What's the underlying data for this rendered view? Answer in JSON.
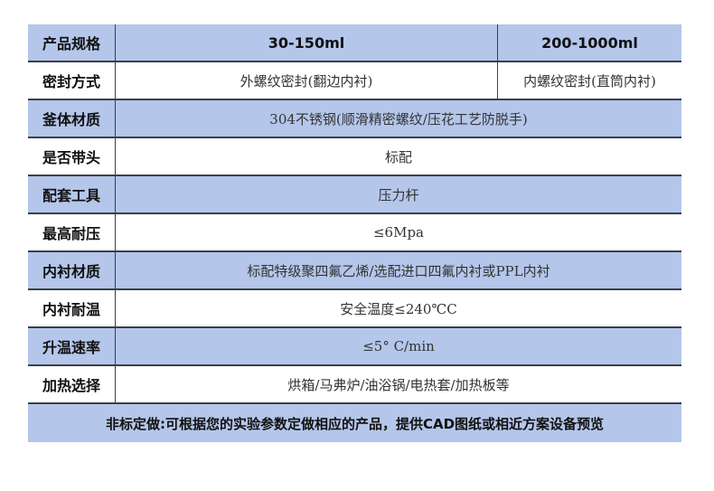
{
  "header": {
    "label": "产品规格",
    "col1": "30-150ml",
    "col2": "200-1000ml"
  },
  "rows": [
    {
      "label": "密封方式",
      "col1": "外螺纹密封(翻边内衬)",
      "col2": "内螺纹密封(直筒内衬)",
      "style": "white"
    },
    {
      "label": "釜体材质",
      "value": "304不锈钢(顺滑精密螺纹/压花工艺防脱手)",
      "style": "blue"
    },
    {
      "label": "是否带头",
      "value": "标配",
      "style": "white"
    },
    {
      "label": "配套工具",
      "value": "压力杆",
      "style": "blue"
    },
    {
      "label": "最高耐压",
      "value": "≤6Mpa",
      "style": "white"
    },
    {
      "label": "内衬材质",
      "value": "标配特级聚四氟乙烯/选配进口四氟内衬或PPL内衬",
      "style": "blue"
    },
    {
      "label": "内衬耐温",
      "value": "安全温度≤240℃C",
      "style": "white"
    },
    {
      "label": "升温速率",
      "value": "≤5° C/min",
      "style": "blue"
    },
    {
      "label": "加热选择",
      "value": "烘箱/马弗炉/油浴锅/电热套/加热板等",
      "style": "white"
    }
  ],
  "footer": "非标定做:可根据您的实验参数定做相应的产品，提供CAD图纸或相近方案设备预览",
  "colors": {
    "blue": "#b4c6ea",
    "border": "#3a3f4a"
  }
}
